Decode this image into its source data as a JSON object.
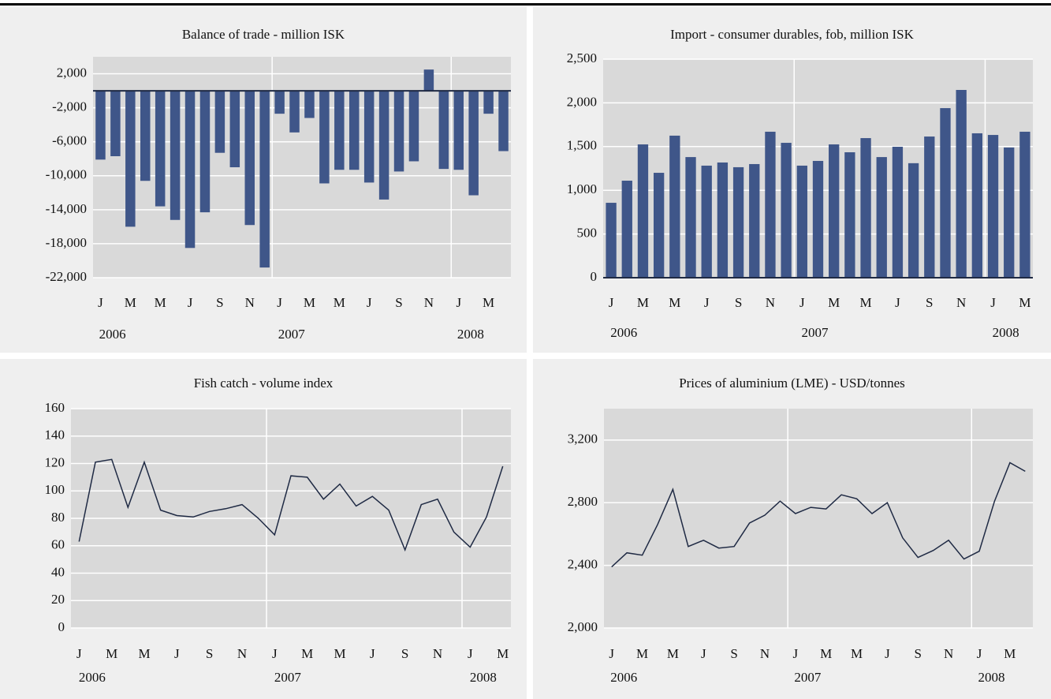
{
  "chart_data": [
    {
      "type": "bar",
      "title": "Balance of trade - million ISK",
      "categories": [
        "J",
        null,
        "M",
        null,
        "M",
        null,
        "J",
        null,
        "S",
        null,
        "N",
        null,
        "J",
        null,
        "M",
        null,
        "M",
        null,
        "J",
        null,
        "S",
        null,
        "N",
        null,
        "J",
        null,
        "M",
        null
      ],
      "years": [
        "2006",
        null,
        null,
        null,
        null,
        null,
        null,
        null,
        null,
        null,
        null,
        null,
        "2007",
        null,
        null,
        null,
        null,
        null,
        null,
        null,
        null,
        null,
        null,
        null,
        "2008",
        null,
        null,
        null
      ],
      "values": [
        -8100,
        -7700,
        -16000,
        -10600,
        -13600,
        -15200,
        -18500,
        -14300,
        -7300,
        -9000,
        -15800,
        -20800,
        -2700,
        -4900,
        -3200,
        -10900,
        -9300,
        -9300,
        -10800,
        -12800,
        -9500,
        -8300,
        2500,
        -9200,
        -9300,
        -12300,
        -2700,
        -7100
      ],
      "color": "#3f5689",
      "ylim": [
        -22000,
        4000
      ],
      "yticks": [
        {
          "value": 2000,
          "label": "2,000"
        },
        {
          "value": -2000,
          "label": "-2,000"
        },
        {
          "value": -6000,
          "label": "-6,000"
        },
        {
          "value": -10000,
          "label": "-10,000"
        },
        {
          "value": -14000,
          "label": "-14,000"
        },
        {
          "value": -18000,
          "label": "-18,000"
        },
        {
          "value": -22000,
          "label": "-22,000"
        }
      ],
      "grid": true
    },
    {
      "type": "bar",
      "title": "Import - consumer durables, fob, million ISK",
      "categories": [
        "J",
        null,
        "M",
        null,
        "M",
        null,
        "J",
        null,
        "S",
        null,
        "N",
        null,
        "J",
        null,
        "M",
        null,
        "M",
        null,
        "J",
        null,
        "S",
        null,
        "N",
        null,
        "J",
        null,
        "M"
      ],
      "years": [
        "2006",
        null,
        null,
        null,
        null,
        null,
        null,
        null,
        null,
        null,
        null,
        null,
        "2007",
        null,
        null,
        null,
        null,
        null,
        null,
        null,
        null,
        null,
        null,
        null,
        "2008",
        null,
        null
      ],
      "values": [
        857,
        1110,
        1525,
        1200,
        1625,
        1380,
        1282,
        1318,
        1264,
        1300,
        1670,
        1543,
        1282,
        1336,
        1525,
        1435,
        1597,
        1380,
        1498,
        1310,
        1615,
        1940,
        2148,
        1652,
        1633,
        1490,
        1670
      ],
      "color": "#3f5689",
      "ylim": [
        0,
        2500
      ],
      "yticks": [
        0,
        500,
        {
          "value": 1000,
          "label": "1,000"
        },
        {
          "value": 1500,
          "label": "1,500"
        },
        {
          "value": 2000,
          "label": "2,000"
        },
        {
          "value": 2500,
          "label": "2,500"
        }
      ],
      "grid": true
    },
    {
      "type": "line",
      "title": "Fish catch - volume index",
      "categories": [
        "J",
        null,
        "M",
        null,
        "M",
        null,
        "J",
        null,
        "S",
        null,
        "N",
        null,
        "J",
        null,
        "M",
        null,
        "M",
        null,
        "J",
        null,
        "S",
        null,
        "N",
        null,
        "J",
        null,
        "M"
      ],
      "years": [
        "2006",
        null,
        null,
        null,
        null,
        null,
        null,
        null,
        null,
        null,
        null,
        null,
        "2007",
        null,
        null,
        null,
        null,
        null,
        null,
        null,
        null,
        null,
        null,
        null,
        "2008",
        null,
        null
      ],
      "values": [
        63,
        121,
        123,
        88,
        121,
        86,
        82,
        81,
        85,
        87,
        90,
        80,
        68,
        111,
        110,
        94,
        105,
        89,
        96,
        86,
        57,
        90,
        94,
        70,
        59,
        81,
        118
      ],
      "color": "#1f2a44",
      "ylim": [
        0,
        160
      ],
      "yticks": [
        0,
        20,
        40,
        60,
        80,
        100,
        120,
        140,
        160
      ],
      "grid": true
    },
    {
      "type": "line",
      "title": "Prices of aluminium (LME) - USD/tonnes",
      "categories": [
        "J",
        null,
        "M",
        null,
        "M",
        null,
        "J",
        null,
        "S",
        null,
        "N",
        null,
        "J",
        null,
        "M",
        null,
        "M",
        null,
        "J",
        null,
        "S",
        null,
        "N",
        null,
        "J",
        null,
        "M",
        null
      ],
      "years": [
        "2006",
        null,
        null,
        null,
        null,
        null,
        null,
        null,
        null,
        null,
        null,
        null,
        "2007",
        null,
        null,
        null,
        null,
        null,
        null,
        null,
        null,
        null,
        null,
        null,
        "2008",
        null,
        null,
        null
      ],
      "values": [
        2390,
        2480,
        2465,
        2660,
        2885,
        2520,
        2560,
        2510,
        2520,
        2670,
        2720,
        2810,
        2730,
        2770,
        2760,
        2850,
        2825,
        2730,
        2800,
        2575,
        2450,
        2495,
        2560,
        2440,
        2490,
        2810,
        3055,
        3000
      ],
      "color": "#1f2a44",
      "ylim": [
        2000,
        3400
      ],
      "yticks": [
        {
          "value": 2000,
          "label": "2,000"
        },
        {
          "value": 2400,
          "label": "2,400"
        },
        {
          "value": 2800,
          "label": "2,800"
        },
        {
          "value": 3200,
          "label": "3,200"
        }
      ],
      "grid": true
    }
  ]
}
